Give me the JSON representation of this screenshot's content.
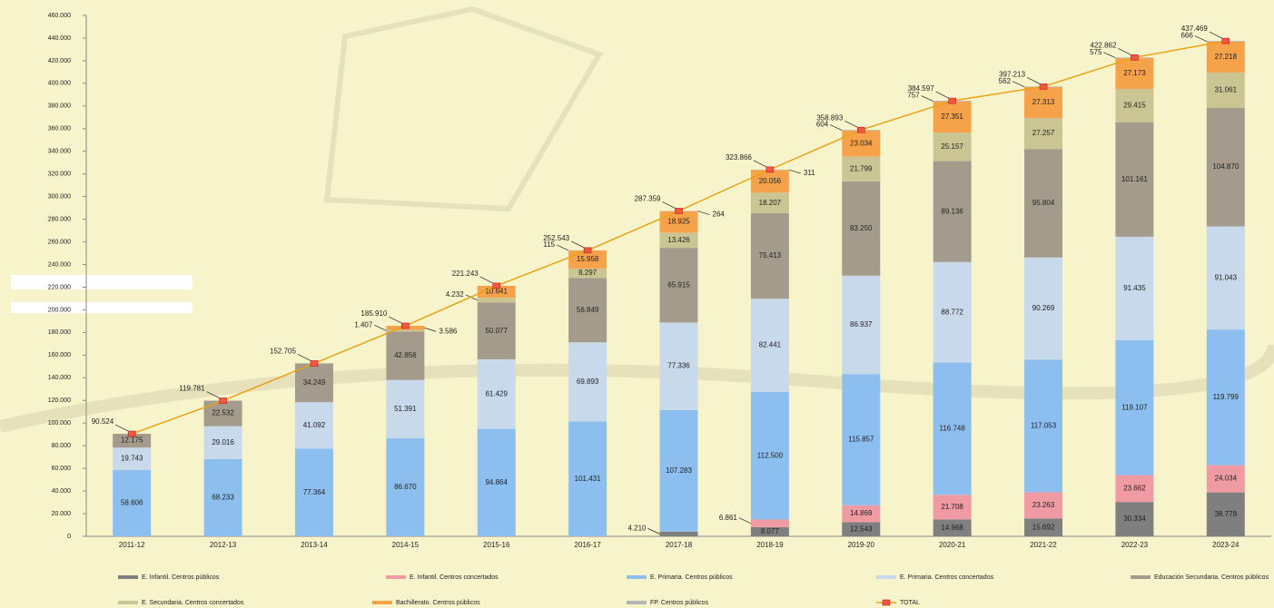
{
  "chart_data": {
    "type": "bar",
    "categories": [
      "2011-12",
      "2012-13",
      "2013-14",
      "2014-15",
      "2015-16",
      "2016-17",
      "2017-18",
      "2018-19",
      "2019-20",
      "2020-21",
      "2021-22",
      "2022-23",
      "2023-24"
    ],
    "ylim": [
      0,
      460000
    ],
    "yticks": [
      0,
      {
        "value": 20000,
        "label": "20.000"
      },
      {
        "value": 40000,
        "label": "40.000"
      },
      {
        "value": 60000,
        "label": "60.000"
      },
      {
        "value": 80000,
        "label": "80.000"
      },
      {
        "value": 100000,
        "label": "100.000"
      },
      {
        "value": 120000,
        "label": "120.000"
      },
      {
        "value": 140000,
        "label": "140.000"
      },
      {
        "value": 160000,
        "label": "160.000"
      },
      {
        "value": 180000,
        "label": "180.000"
      },
      {
        "value": 200000,
        "label": "200.000"
      },
      {
        "value": 220000,
        "label": "220.000"
      },
      {
        "value": 240000,
        "label": "240.000"
      },
      {
        "value": 260000,
        "label": "260.000"
      },
      {
        "value": 280000,
        "label": "280.000"
      },
      {
        "value": 300000,
        "label": "300.000"
      },
      {
        "value": 320000,
        "label": "320.000"
      },
      {
        "value": 340000,
        "label": "340.000"
      },
      {
        "value": 360000,
        "label": "360.000"
      },
      {
        "value": 380000,
        "label": "380.000"
      },
      {
        "value": 400000,
        "label": "400.000"
      },
      {
        "value": 420000,
        "label": "420.000"
      },
      {
        "value": 440000,
        "label": "440.000"
      },
      {
        "value": 460000,
        "label": "460.000"
      }
    ],
    "series": [
      {
        "name": "E. Infantil. Centros públicos",
        "color": "#7f7f7f",
        "values": [
          null,
          null,
          null,
          null,
          null,
          null,
          4210,
          8077,
          12543,
          14968,
          15692,
          30334,
          38778
        ],
        "value_labels": [
          null,
          null,
          null,
          null,
          null,
          null,
          "4.210",
          "8.077",
          "12.543",
          "14.968",
          "15.692",
          "30.334",
          "38.778"
        ]
      },
      {
        "name": "E. Infantil. Centros concertados",
        "color": "#f09aa4",
        "values": [
          null,
          null,
          null,
          null,
          null,
          null,
          null,
          6861,
          14869,
          21708,
          23263,
          23662,
          24034
        ],
        "value_labels": [
          null,
          null,
          null,
          null,
          null,
          null,
          null,
          "6.861",
          "14.869",
          "21.708",
          "23.263",
          "23.662",
          "24.034"
        ]
      },
      {
        "name": "E. Primaria. Centros públicos",
        "color": "#8cbff0",
        "values": [
          58606,
          68233,
          77364,
          86670,
          94864,
          101431,
          107283,
          112500,
          115857,
          116748,
          117053,
          119107,
          119799
        ],
        "value_labels": [
          "58.606",
          "68.233",
          "77.364",
          "86.670",
          "94.864",
          "101.431",
          "107.283",
          "112.500",
          "115.857",
          "116.748",
          "117.053",
          "119.107",
          "119.799"
        ]
      },
      {
        "name": "E. Primaria. Centros  concertados",
        "color": "#c9d9ec",
        "values": [
          19743,
          29016,
          41092,
          51391,
          61429,
          69893,
          77336,
          82441,
          86937,
          88772,
          90269,
          91435,
          91043
        ],
        "value_labels": [
          "19.743",
          "29.016",
          "41.092",
          "51.391",
          "61.429",
          "69.893",
          "77.336",
          "82.441",
          "86.937",
          "88.772",
          "90.269",
          "91.435",
          "91.043"
        ]
      },
      {
        "name": "Educación Secundaria. Centros públicos",
        "color": "#a59b8c",
        "values": [
          12175,
          22532,
          34249,
          42856,
          50077,
          56849,
          65915,
          75413,
          83250,
          89136,
          95804,
          101161,
          104870
        ],
        "value_labels": [
          "12.175",
          "22.532",
          "34.249",
          "42.856",
          "50.077",
          "56.849",
          "65.915",
          "75.413",
          "83.250",
          "89.136",
          "95.804",
          "101.161",
          "104.870"
        ]
      },
      {
        "name": "E. Secundaria. Centros concertados",
        "color": "#cbc493",
        "values": [
          null,
          null,
          null,
          1407,
          4232,
          8297,
          13426,
          18207,
          21799,
          25157,
          27257,
          29415,
          31061
        ],
        "value_labels": [
          null,
          null,
          null,
          "1.407",
          "4.232",
          "8.297",
          "13.426",
          "18.207",
          "21.799",
          "25.157",
          "27.257",
          "29.415",
          "31.061"
        ]
      },
      {
        "name": "Bachillerato. Centros públicos",
        "color": "#f6a24b",
        "values": [
          null,
          null,
          null,
          3586,
          10641,
          15958,
          18925,
          20056,
          23034,
          27351,
          27313,
          27173,
          27218
        ],
        "value_labels": [
          null,
          null,
          null,
          "3.586",
          "10.641",
          "15.958",
          "18.925",
          "20.056",
          "23.034",
          "27.351",
          "27.313",
          "27.173",
          "27.218"
        ]
      },
      {
        "name": "FP. Centros públicos",
        "color": "#b5b5b5",
        "values": [
          null,
          null,
          null,
          null,
          null,
          115,
          264,
          311,
          604,
          757,
          562,
          575,
          666
        ]
      },
      {
        "name": "TOTAL",
        "type": "line",
        "color": "#e8a317",
        "values": [
          90524,
          119781,
          152705,
          185910,
          221243,
          252543,
          287359,
          323866,
          358893,
          384597,
          397213,
          422862,
          437469
        ],
        "value_labels": [
          "90.524",
          "119.781",
          "152.705",
          "185.910",
          "221.243",
          "252.543",
          "287.359",
          "323.866",
          "358.893",
          "384.597",
          "397.213",
          "422.862",
          "437.469"
        ]
      }
    ]
  }
}
